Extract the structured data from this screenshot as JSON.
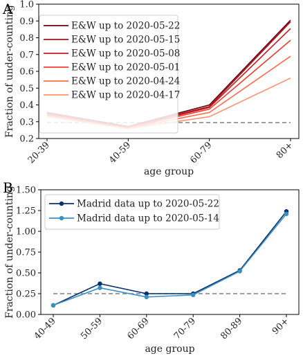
{
  "chart_data": [
    {
      "panel": "A",
      "type": "line",
      "categories": [
        "20-39",
        "40-59",
        "60-79",
        "80+"
      ],
      "xlabel": "age group",
      "ylabel": "Fraction of under-counting",
      "ylim": [
        0.2,
        1.0
      ],
      "yticks": [
        "0.2",
        "0.3",
        "0.4",
        "0.5",
        "0.6",
        "0.7",
        "0.8",
        "0.9",
        "1.0"
      ],
      "reference_line": 0.295,
      "legend_position": "top-left",
      "grid": false,
      "markers": false,
      "series": [
        {
          "name": "E&W up to 2020-05-22",
          "color": "#67000d",
          "values": [
            0.355,
            0.272,
            0.4,
            0.905
          ]
        },
        {
          "name": "E&W up to 2020-05-15",
          "color": "#a50f15",
          "values": [
            0.35,
            0.268,
            0.39,
            0.895
          ]
        },
        {
          "name": "E&W up to 2020-05-08",
          "color": "#cb181d",
          "values": [
            0.345,
            0.265,
            0.385,
            0.855
          ]
        },
        {
          "name": "E&W up to 2020-05-01",
          "color": "#ef3b2c",
          "values": [
            0.34,
            0.262,
            0.375,
            0.785
          ]
        },
        {
          "name": "E&W up to 2020-04-24",
          "color": "#fb6a4a",
          "values": [
            0.335,
            0.26,
            0.355,
            0.69
          ]
        },
        {
          "name": "E&W up to 2020-04-17",
          "color": "#fc9272",
          "values": [
            0.33,
            0.258,
            0.33,
            0.56
          ]
        }
      ]
    },
    {
      "panel": "B",
      "type": "line",
      "categories": [
        "40-49",
        "50-59",
        "60-69",
        "70-79",
        "80-89",
        "90+"
      ],
      "xlabel": "age group",
      "ylabel": "Fraction of under-counting",
      "ylim": [
        0.0,
        1.5
      ],
      "yticks": [
        "0.00",
        "0.25",
        "0.50",
        "0.75",
        "1.00",
        "1.25",
        "1.50"
      ],
      "reference_line": 0.25,
      "legend_position": "top-left",
      "grid": false,
      "markers": true,
      "series": [
        {
          "name": "Madrid data up to 2020-05-22",
          "color": "#08306b",
          "values": [
            0.11,
            0.37,
            0.25,
            0.25,
            0.53,
            1.24
          ]
        },
        {
          "name": "Madrid data up to 2020-05-14",
          "color": "#3a8fc3",
          "values": [
            0.11,
            0.32,
            0.21,
            0.235,
            0.52,
            1.21
          ]
        }
      ]
    }
  ]
}
